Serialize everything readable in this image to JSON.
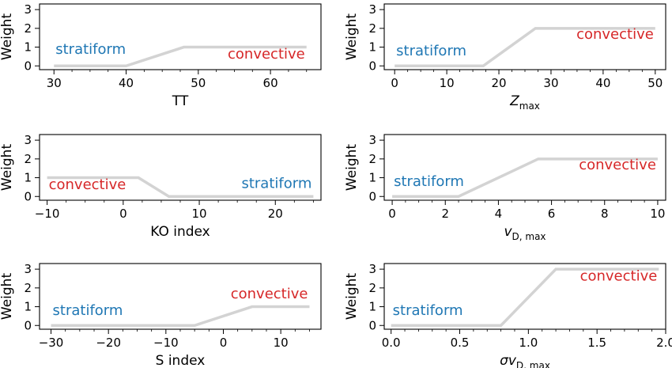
{
  "chart_data": [
    {
      "type": "line",
      "xlabel": "TT",
      "ylabel": "Weight",
      "xlim": [
        28,
        67
      ],
      "ylim": [
        -0.2,
        3.3
      ],
      "xticks": [
        30,
        40,
        50,
        60
      ],
      "yticks": [
        0,
        1,
        2,
        3
      ],
      "x": [
        30,
        40,
        48,
        65
      ],
      "y": [
        0,
        0,
        1,
        1
      ],
      "line_color": "#d3d3d3",
      "annotations": [
        {
          "text": "stratiform",
          "color": "#1f77b4",
          "anchor_x": 30,
          "anchor_y": 0.65,
          "align": "start"
        },
        {
          "text": "convective",
          "color": "#d62728",
          "anchor_x": 65,
          "anchor_y": 0.4,
          "align": "end"
        }
      ]
    },
    {
      "type": "line",
      "xlabel": "Z",
      "xlabel_sub": "max",
      "xlabel_italic": true,
      "ylabel": "Weight",
      "xlim": [
        -2,
        52
      ],
      "ylim": [
        -0.2,
        3.3
      ],
      "xticks": [
        0,
        10,
        20,
        30,
        40,
        50
      ],
      "yticks": [
        0,
        1,
        2,
        3
      ],
      "x": [
        0,
        17,
        27,
        50
      ],
      "y": [
        0,
        0,
        2,
        2
      ],
      "line_color": "#d3d3d3",
      "annotations": [
        {
          "text": "stratiform",
          "color": "#1f77b4",
          "anchor_x": 0,
          "anchor_y": 0.55,
          "align": "start"
        },
        {
          "text": "convective",
          "color": "#d62728",
          "anchor_x": 50,
          "anchor_y": 1.45,
          "align": "end"
        }
      ]
    },
    {
      "type": "line",
      "xlabel": "KO index",
      "ylabel": "Weight",
      "xlim": [
        -11,
        26
      ],
      "ylim": [
        -0.2,
        3.3
      ],
      "xticks": [
        -10,
        0,
        10,
        20
      ],
      "yticks": [
        0,
        1,
        2,
        3
      ],
      "x": [
        -10,
        2,
        6,
        25
      ],
      "y": [
        1,
        1,
        0,
        0
      ],
      "line_color": "#d3d3d3",
      "annotations": [
        {
          "text": "convective",
          "color": "#d62728",
          "anchor_x": -10,
          "anchor_y": 0.4,
          "align": "start"
        },
        {
          "text": "stratiform",
          "color": "#1f77b4",
          "anchor_x": 25,
          "anchor_y": 0.45,
          "align": "end"
        }
      ]
    },
    {
      "type": "line",
      "xlabel": "v",
      "xlabel_sub": "D, max",
      "xlabel_italic": true,
      "ylabel": "Weight",
      "xlim": [
        -0.3,
        10.3
      ],
      "ylim": [
        -0.2,
        3.3
      ],
      "xticks": [
        0,
        2,
        4,
        6,
        8,
        10
      ],
      "yticks": [
        0,
        1,
        2,
        3
      ],
      "x": [
        0,
        2.5,
        5.5,
        10
      ],
      "y": [
        0,
        0,
        2,
        2
      ],
      "line_color": "#d3d3d3",
      "annotations": [
        {
          "text": "stratiform",
          "color": "#1f77b4",
          "anchor_x": 0,
          "anchor_y": 0.55,
          "align": "start"
        },
        {
          "text": "convective",
          "color": "#d62728",
          "anchor_x": 10,
          "anchor_y": 1.45,
          "align": "end"
        }
      ]
    },
    {
      "type": "line",
      "xlabel": "S index",
      "ylabel": "Weight",
      "xlim": [
        -32,
        17
      ],
      "ylim": [
        -0.2,
        3.3
      ],
      "xticks": [
        -30,
        -20,
        -10,
        0,
        10
      ],
      "xtick_labels": [
        "−30",
        "−20",
        "−10",
        "0",
        "10"
      ],
      "yticks": [
        0,
        1,
        2,
        3
      ],
      "x": [
        -30,
        -5,
        5,
        15
      ],
      "y": [
        0,
        0,
        1,
        1
      ],
      "line_color": "#d3d3d3",
      "annotations": [
        {
          "text": "stratiform",
          "color": "#1f77b4",
          "anchor_x": -30,
          "anchor_y": 0.55,
          "align": "start"
        },
        {
          "text": "convective",
          "color": "#d62728",
          "anchor_x": 15,
          "anchor_y": 1.45,
          "align": "end"
        }
      ]
    },
    {
      "type": "line",
      "xlabel": "σv",
      "xlabel_sub": "D, max",
      "xlabel_italic": true,
      "ylabel": "Weight",
      "xlim": [
        -0.05,
        2.0
      ],
      "ylim": [
        -0.2,
        3.3
      ],
      "xticks": [
        0.0,
        0.5,
        1.0,
        1.5,
        2.0
      ],
      "xtick_labels": [
        "0.0",
        "0.5",
        "1.0",
        "1.5",
        "2.0"
      ],
      "yticks": [
        0,
        1,
        2,
        3
      ],
      "x": [
        0,
        0.8,
        1.2,
        1.95
      ],
      "y": [
        0,
        0,
        3,
        3
      ],
      "line_color": "#d3d3d3",
      "annotations": [
        {
          "text": "stratiform",
          "color": "#1f77b4",
          "anchor_x": 0,
          "anchor_y": 0.55,
          "align": "start"
        },
        {
          "text": "convective",
          "color": "#d62728",
          "anchor_x": 1.95,
          "anchor_y": 2.4,
          "align": "end"
        }
      ]
    }
  ]
}
